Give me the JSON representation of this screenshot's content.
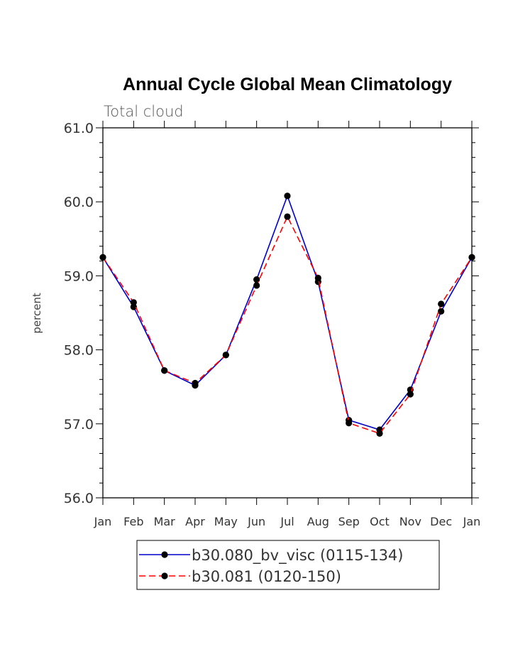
{
  "chart_data": {
    "type": "line",
    "title": "Annual Cycle Global Mean Climatology",
    "subtitle": "Total cloud",
    "xlabel": "",
    "ylabel": "percent",
    "categories": [
      "Jan",
      "Feb",
      "Mar",
      "Apr",
      "May",
      "Jun",
      "Jul",
      "Aug",
      "Sep",
      "Oct",
      "Nov",
      "Dec",
      "Jan"
    ],
    "ylim": [
      56.0,
      61.0
    ],
    "yticks": [
      56.0,
      57.0,
      58.0,
      59.0,
      60.0,
      61.0
    ],
    "ytick_labels": [
      "56.0",
      "57.0",
      "58.0",
      "59.0",
      "60.0",
      "61.0"
    ],
    "series": [
      {
        "name": "b30.080_bv_visc (0115-134)",
        "color": "#0000cc",
        "dash": "solid",
        "values": [
          59.25,
          58.58,
          57.72,
          57.52,
          57.93,
          58.95,
          60.08,
          58.92,
          57.05,
          56.92,
          57.46,
          58.52,
          59.25
        ]
      },
      {
        "name": "b30.081 (0120-150)",
        "color": "#ff0000",
        "dash": "dashed",
        "values": [
          59.25,
          58.64,
          57.72,
          57.55,
          57.93,
          58.87,
          59.8,
          58.97,
          57.01,
          56.87,
          57.4,
          58.62,
          59.25
        ]
      }
    ],
    "legend_location": "bottom-center",
    "marker_color": "#000000"
  }
}
